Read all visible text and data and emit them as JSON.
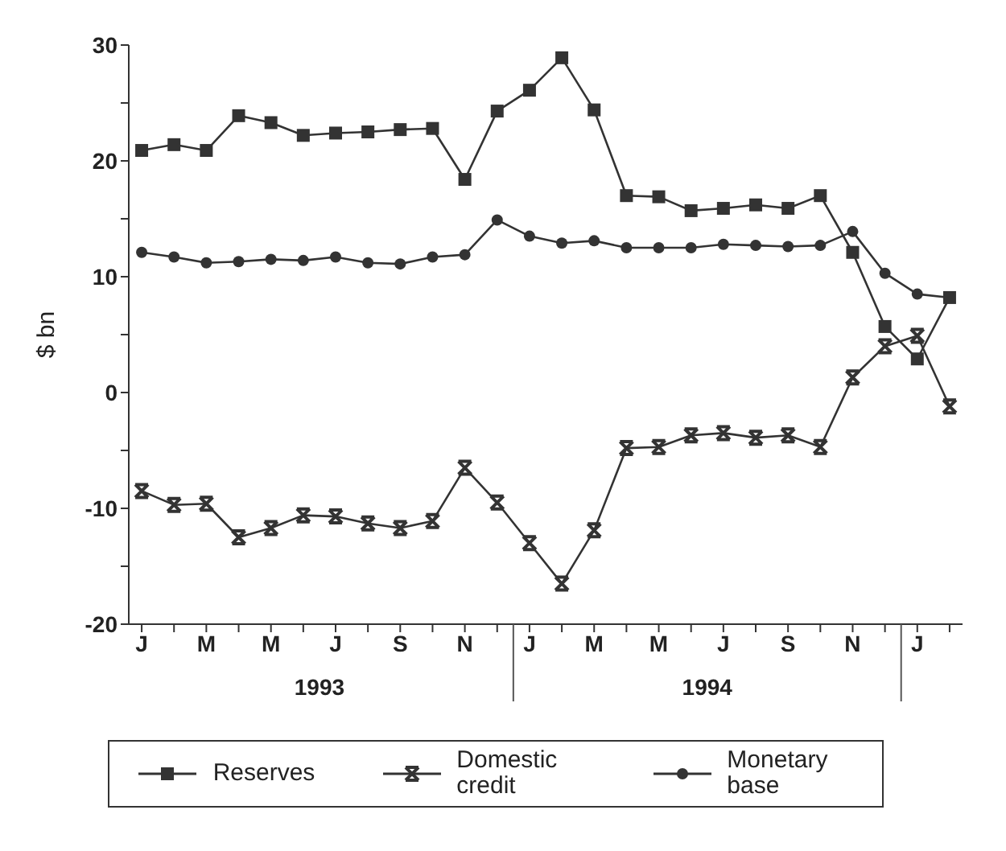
{
  "chart_data": {
    "type": "line",
    "ylabel": "$ bn",
    "categories": [
      "J",
      null,
      "M",
      null,
      "M",
      null,
      "J",
      null,
      "S",
      null,
      "N",
      null,
      "J",
      null,
      "M",
      null,
      "M",
      null,
      "J",
      null,
      "S",
      null,
      "N",
      null,
      "J",
      null
    ],
    "series": [
      {
        "name": "Reserves",
        "color": "#333333",
        "marker": "square",
        "values": [
          20.9,
          21.4,
          20.9,
          23.9,
          23.3,
          22.2,
          22.4,
          22.5,
          22.7,
          22.8,
          18.4,
          24.3,
          26.1,
          28.9,
          24.4,
          17.0,
          16.9,
          15.7,
          15.9,
          16.2,
          15.9,
          17.0,
          12.1,
          5.7,
          2.9,
          8.2
        ]
      },
      {
        "name": "Domestic credit",
        "color": "#333333",
        "marker": "cross",
        "values": [
          -8.5,
          -9.7,
          -9.6,
          -12.5,
          -11.7,
          -10.6,
          -10.7,
          -11.3,
          -11.7,
          -11.1,
          -6.5,
          -9.5,
          -13.0,
          -16.5,
          -11.9,
          -4.8,
          -4.7,
          -3.7,
          -3.5,
          -3.9,
          -3.7,
          -4.7,
          1.3,
          4.0,
          4.9,
          -1.2
        ]
      },
      {
        "name": "Monetary base",
        "color": "#333333",
        "marker": "circle",
        "values": [
          12.1,
          11.7,
          11.2,
          11.3,
          11.5,
          11.4,
          11.7,
          11.2,
          11.1,
          11.7,
          11.9,
          14.9,
          13.5,
          12.9,
          13.1,
          12.5,
          12.5,
          12.5,
          12.8,
          12.7,
          12.6,
          12.7,
          13.9,
          10.3,
          8.5,
          8.2
        ]
      }
    ],
    "ylim": [
      -20,
      30
    ],
    "yticks": [
      -20,
      {
        "value": -15,
        "label": null
      },
      -10,
      {
        "value": -5,
        "label": null
      },
      0,
      {
        "value": 5,
        "label": null
      },
      10,
      {
        "value": 15,
        "label": null
      },
      20,
      {
        "value": 25,
        "label": null
      },
      30
    ],
    "annotations": [
      "1993",
      "1994"
    ],
    "grid": false,
    "legend": "bottom",
    "line_style": "solid"
  }
}
